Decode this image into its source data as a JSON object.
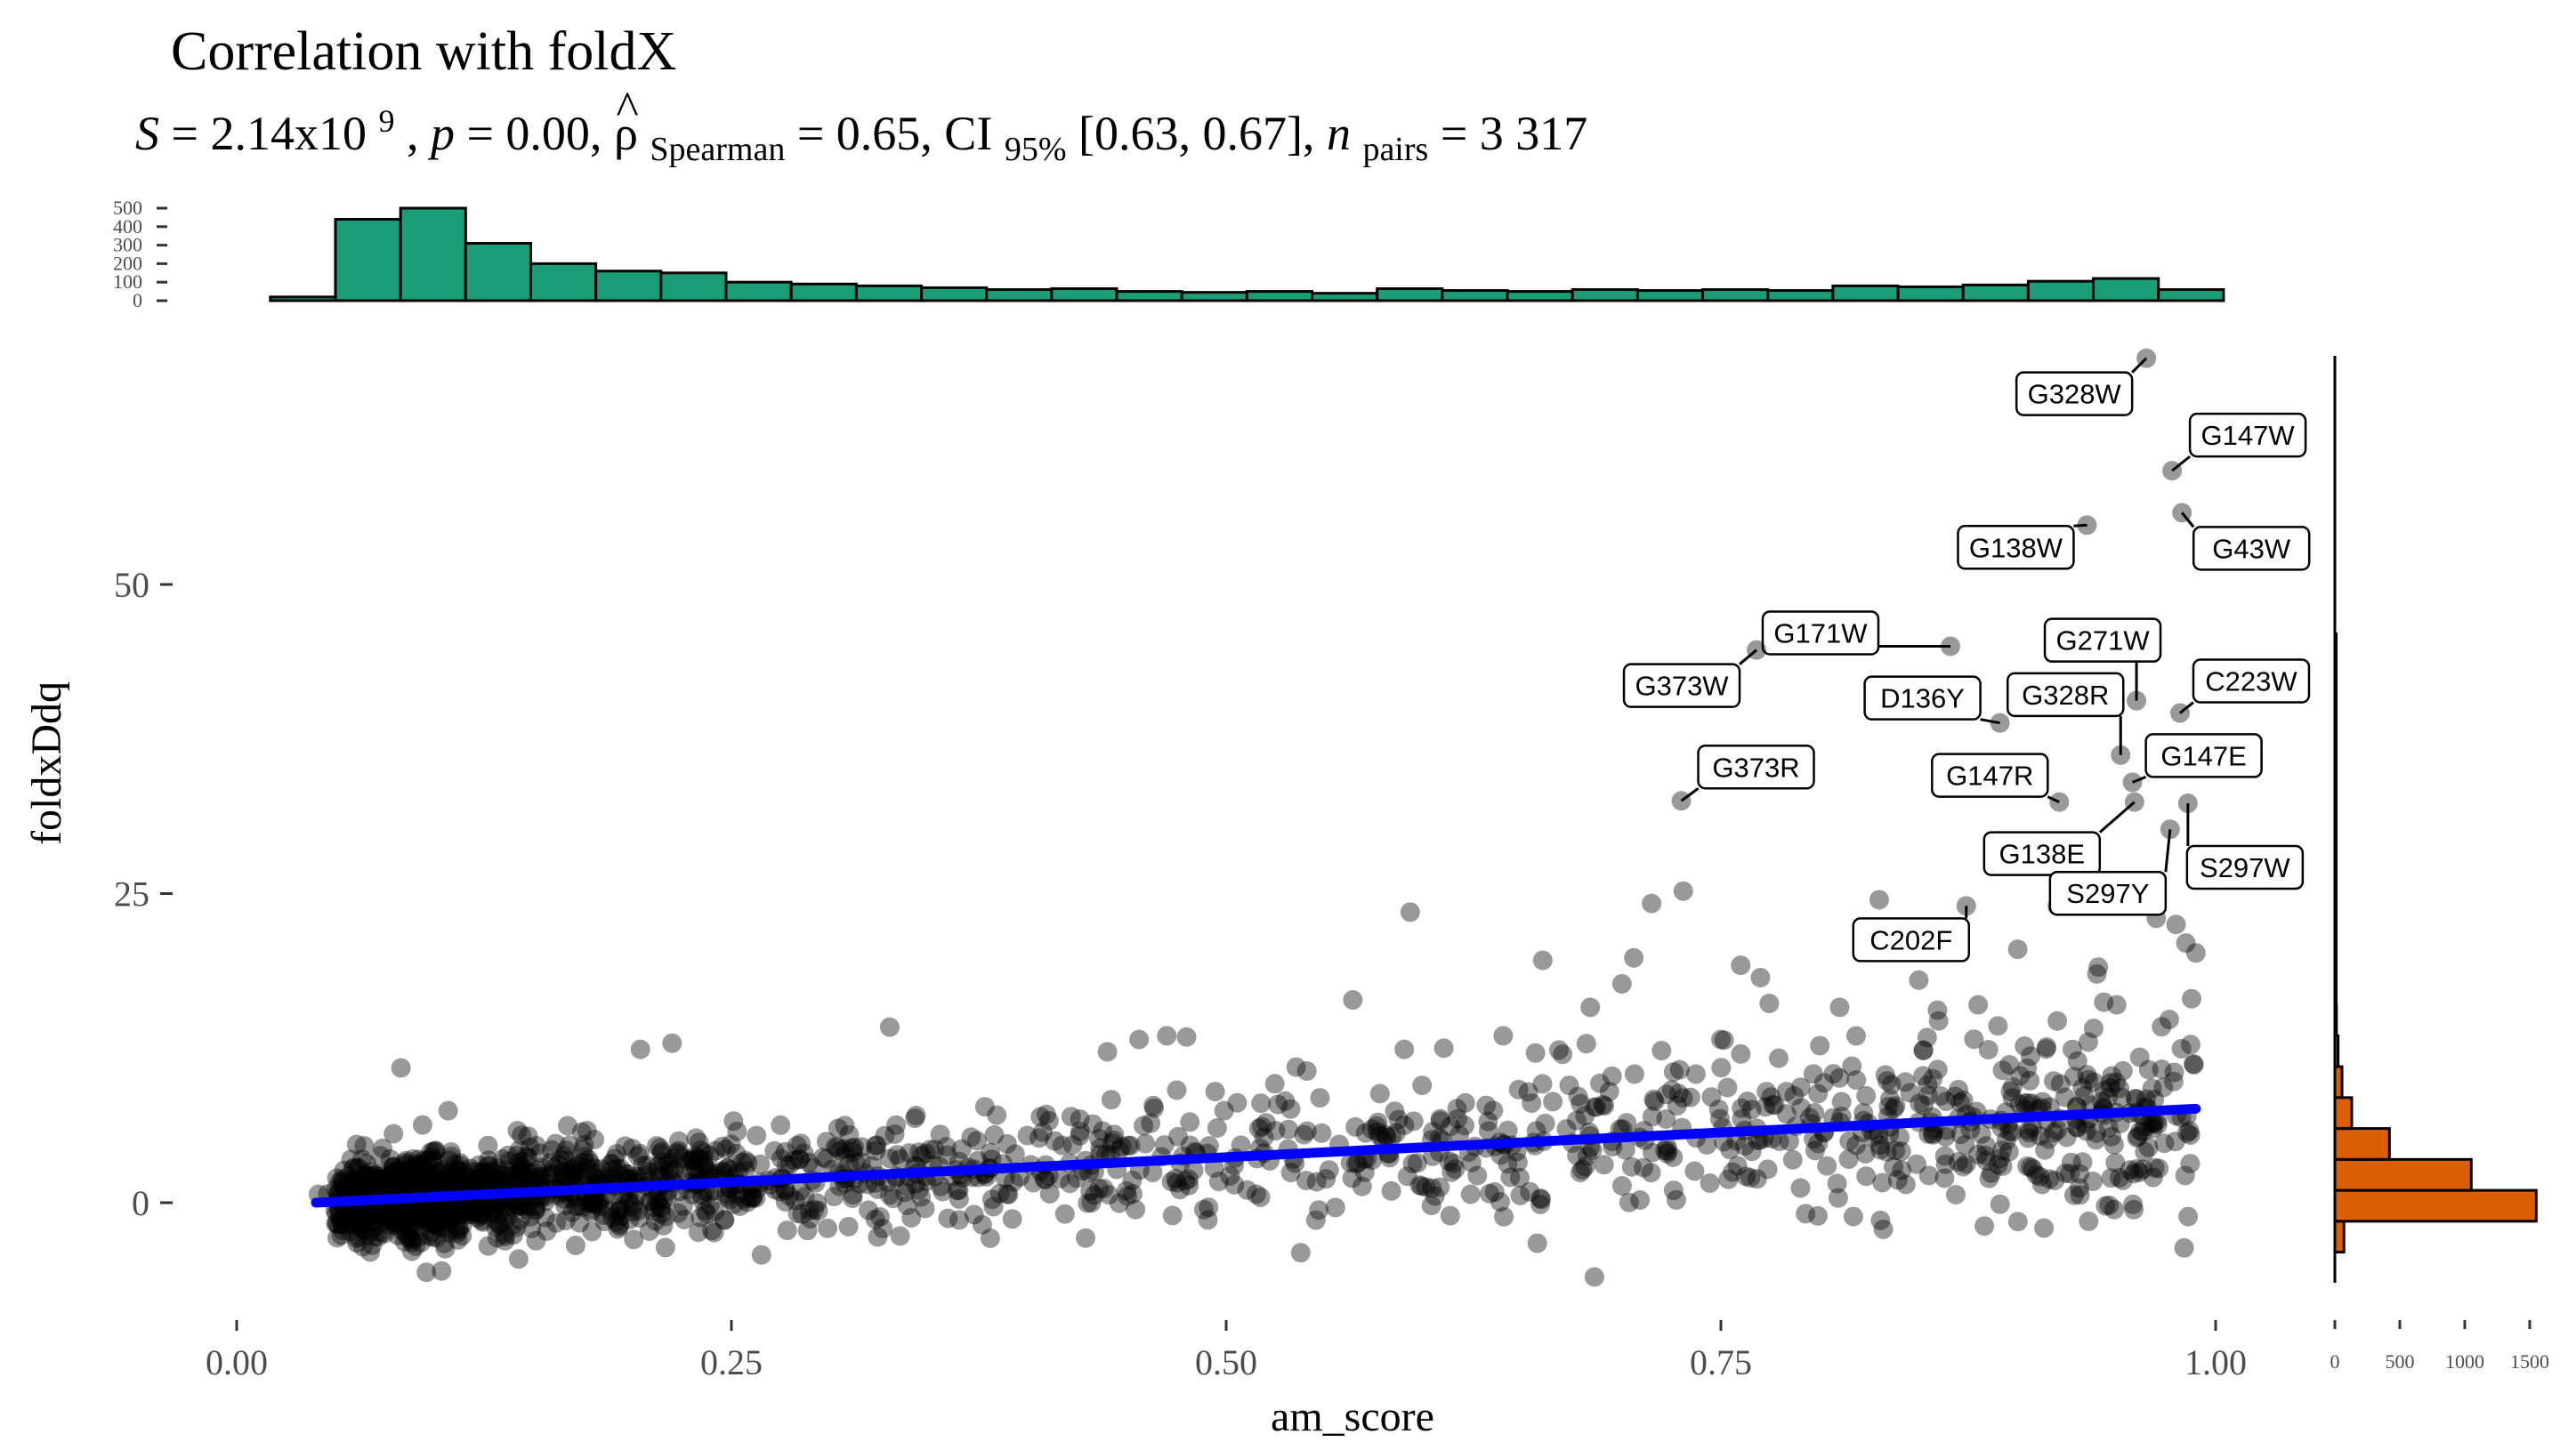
{
  "chart_data": {
    "type": "scatter",
    "title": "Correlation with foldX",
    "subtitle": {
      "S_label": "S",
      "eq": " = ",
      "S_mantissa": "2.14x10",
      "S_exp": "9",
      "p_label": "p",
      "p_value": " = 0.00, ",
      "rho_symbol": "ρ",
      "rho_hat": "^",
      "rho_sub": "Spearman",
      "rho_value": " = 0.65, CI",
      "ci_sub": "95%",
      "ci_value": " [0.63, 0.67], ",
      "n_label": "n",
      "n_sub": "pairs",
      "n_value": " = 3 317"
    },
    "xlabel": "am_score",
    "ylabel": "foldxDdq",
    "xlim": [
      0.0,
      1.0
    ],
    "ylim": [
      -10,
      68
    ],
    "xticks": [
      {
        "value": 0.0,
        "label": "0.00"
      },
      {
        "value": 0.25,
        "label": "0.25"
      },
      {
        "value": 0.5,
        "label": "0.50"
      },
      {
        "value": 0.75,
        "label": "0.75"
      },
      {
        "value": 1.0,
        "label": "1.00"
      }
    ],
    "yticks": [
      {
        "value": 0,
        "label": "0"
      },
      {
        "value": 25,
        "label": "25"
      },
      {
        "value": 50,
        "label": "50"
      }
    ],
    "point_color": "#000000",
    "point_opacity": 0.4,
    "regression_line": {
      "color": "#0000ff",
      "x": [
        0.04,
        0.99
      ],
      "y": [
        0.0,
        7.6
      ]
    },
    "labeled_points": [
      {
        "label": "G328W",
        "x": 0.965,
        "y": 68.3
      },
      {
        "label": "G147W",
        "x": 0.978,
        "y": 59.2
      },
      {
        "label": "G43W",
        "x": 0.983,
        "y": 55.8
      },
      {
        "label": "G138W",
        "x": 0.935,
        "y": 54.8
      },
      {
        "label": "G171W",
        "x": 0.866,
        "y": 45.0
      },
      {
        "label": "G271W",
        "x": 0.96,
        "y": 40.6
      },
      {
        "label": "C223W",
        "x": 0.982,
        "y": 39.6
      },
      {
        "label": "G373W",
        "x": 0.768,
        "y": 44.7
      },
      {
        "label": "D136Y",
        "x": 0.891,
        "y": 38.8
      },
      {
        "label": "G328R",
        "x": 0.952,
        "y": 36.2
      },
      {
        "label": "G147E",
        "x": 0.958,
        "y": 34.0
      },
      {
        "label": "G147R",
        "x": 0.921,
        "y": 32.4
      },
      {
        "label": "G373R",
        "x": 0.73,
        "y": 32.5
      },
      {
        "label": "G138E",
        "x": 0.959,
        "y": 32.4
      },
      {
        "label": "S297W",
        "x": 0.986,
        "y": 32.3
      },
      {
        "label": "S297Y",
        "x": 0.977,
        "y": 30.2
      },
      {
        "label": "C202F",
        "x": 0.874,
        "y": 24.0
      }
    ],
    "outlier_points": [
      {
        "x": 0.593,
        "y": 23.5
      },
      {
        "x": 0.715,
        "y": 24.2
      },
      {
        "x": 0.731,
        "y": 25.2
      },
      {
        "x": 0.66,
        "y": 19.6
      },
      {
        "x": 0.706,
        "y": 19.8
      },
      {
        "x": 0.7,
        "y": 17.7
      },
      {
        "x": 0.76,
        "y": 19.2
      },
      {
        "x": 0.684,
        "y": 15.8
      },
      {
        "x": 0.564,
        "y": 16.4
      },
      {
        "x": 0.77,
        "y": 18.2
      },
      {
        "x": 0.81,
        "y": 15.8
      },
      {
        "x": 0.88,
        "y": 16.0
      },
      {
        "x": 0.85,
        "y": 18.0
      },
      {
        "x": 0.83,
        "y": 24.5
      },
      {
        "x": 0.9,
        "y": 20.5
      },
      {
        "x": 0.94,
        "y": 18.5
      },
      {
        "x": 0.97,
        "y": 23.0
      },
      {
        "x": 0.985,
        "y": 21.0
      },
      {
        "x": 0.99,
        "y": 20.2
      },
      {
        "x": 0.98,
        "y": 22.5
      },
      {
        "x": 0.92,
        "y": 24.0
      },
      {
        "x": 0.89,
        "y": 14.3
      },
      {
        "x": 0.86,
        "y": 14.7
      },
      {
        "x": 0.92,
        "y": 14.7
      },
      {
        "x": 0.95,
        "y": 16.0
      },
      {
        "x": 0.75,
        "y": 13.2
      },
      {
        "x": 0.8,
        "y": 12.7
      },
      {
        "x": 0.64,
        "y": 13.5
      },
      {
        "x": 0.61,
        "y": 12.5
      },
      {
        "x": 0.48,
        "y": 13.4
      },
      {
        "x": 0.33,
        "y": 14.2
      },
      {
        "x": 0.22,
        "y": 12.9
      },
      {
        "x": 0.204,
        "y": 12.4
      },
      {
        "x": 0.083,
        "y": 10.9
      },
      {
        "x": 0.456,
        "y": 13.2
      },
      {
        "x": 0.47,
        "y": 13.5
      },
      {
        "x": 0.44,
        "y": 12.2
      },
      {
        "x": 0.59,
        "y": 12.4
      },
      {
        "x": 0.67,
        "y": 12.0
      },
      {
        "x": 0.72,
        "y": 12.3
      },
      {
        "x": 0.96,
        "y": 26.0
      },
      {
        "x": 0.945,
        "y": 25.0
      }
    ],
    "top_histogram": {
      "color": "#1b9e77",
      "yticks": [
        0,
        100,
        200,
        300,
        400,
        500
      ],
      "bin_start": 0.017,
      "bin_width": 0.0329,
      "counts": [
        20,
        440,
        500,
        310,
        200,
        160,
        150,
        100,
        90,
        80,
        70,
        60,
        65,
        50,
        45,
        50,
        40,
        65,
        55,
        50,
        60,
        55,
        60,
        55,
        80,
        75,
        85,
        105,
        120,
        60
      ]
    },
    "right_histogram": {
      "color": "#d95f02",
      "xticks": [
        0,
        500,
        1000,
        1500
      ],
      "bins": [
        {
          "y0": -4,
          "y1": -1.5,
          "count": 70
        },
        {
          "y0": -1.5,
          "y1": 1,
          "count": 1550
        },
        {
          "y0": 1,
          "y1": 3.5,
          "count": 1050
        },
        {
          "y0": 3.5,
          "y1": 6,
          "count": 420
        },
        {
          "y0": 6,
          "y1": 8.5,
          "count": 130
        },
        {
          "y0": 8.5,
          "y1": 11,
          "count": 55
        },
        {
          "y0": 11,
          "y1": 13.5,
          "count": 25
        },
        {
          "y0": 13.5,
          "y1": 16,
          "count": 12
        },
        {
          "y0": 16,
          "y1": 18.5,
          "count": 8
        },
        {
          "y0": 18.5,
          "y1": 21,
          "count": 6
        },
        {
          "y0": 21,
          "y1": 23.5,
          "count": 4
        },
        {
          "y0": 23.5,
          "y1": 26,
          "count": 4
        },
        {
          "y0": 26,
          "y1": 28.5,
          "count": 3
        },
        {
          "y0": 28.5,
          "y1": 31,
          "count": 3
        },
        {
          "y0": 31,
          "y1": 33.5,
          "count": 5
        },
        {
          "y0": 33.5,
          "y1": 36,
          "count": 3
        },
        {
          "y0": 36,
          "y1": 38.5,
          "count": 3
        },
        {
          "y0": 38.5,
          "y1": 41,
          "count": 3
        },
        {
          "y0": 41,
          "y1": 43.5,
          "count": 2
        },
        {
          "y0": 43.5,
          "y1": 46,
          "count": 2
        }
      ]
    }
  }
}
